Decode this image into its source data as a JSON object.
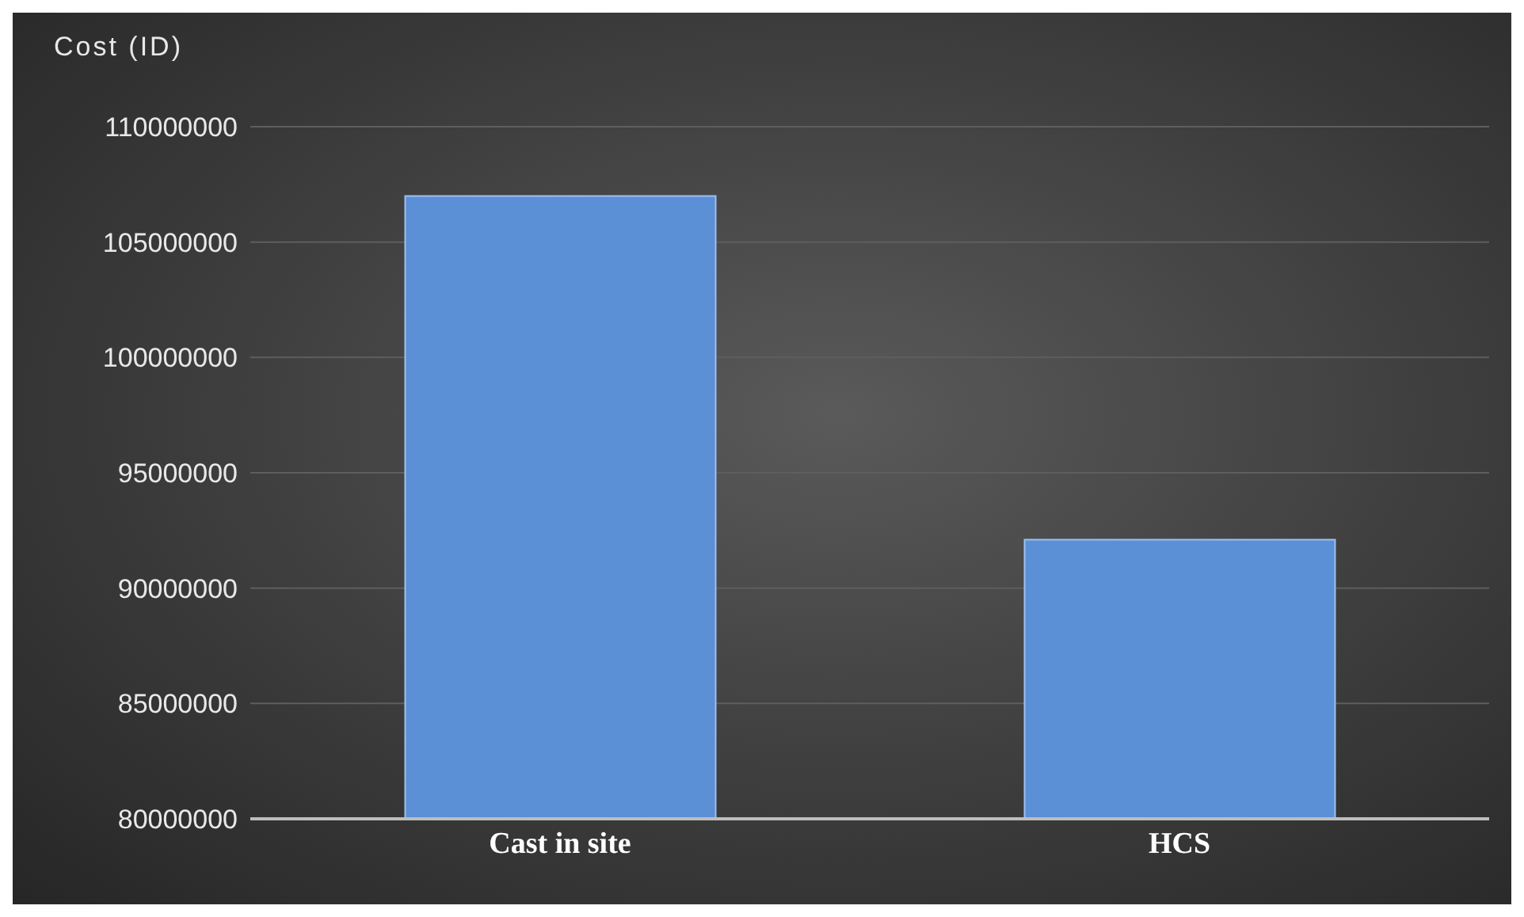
{
  "chart_data": {
    "type": "bar",
    "ylabel": "Cost (ID)",
    "categories": [
      "Cast in site",
      "HCS"
    ],
    "values": [
      107000000,
      92100000
    ],
    "color": "#5b8fd6",
    "ylim": [
      80000000,
      110000000
    ],
    "yticks": [
      80000000,
      85000000,
      90000000,
      95000000,
      100000000,
      105000000,
      110000000
    ],
    "grid": "y"
  }
}
